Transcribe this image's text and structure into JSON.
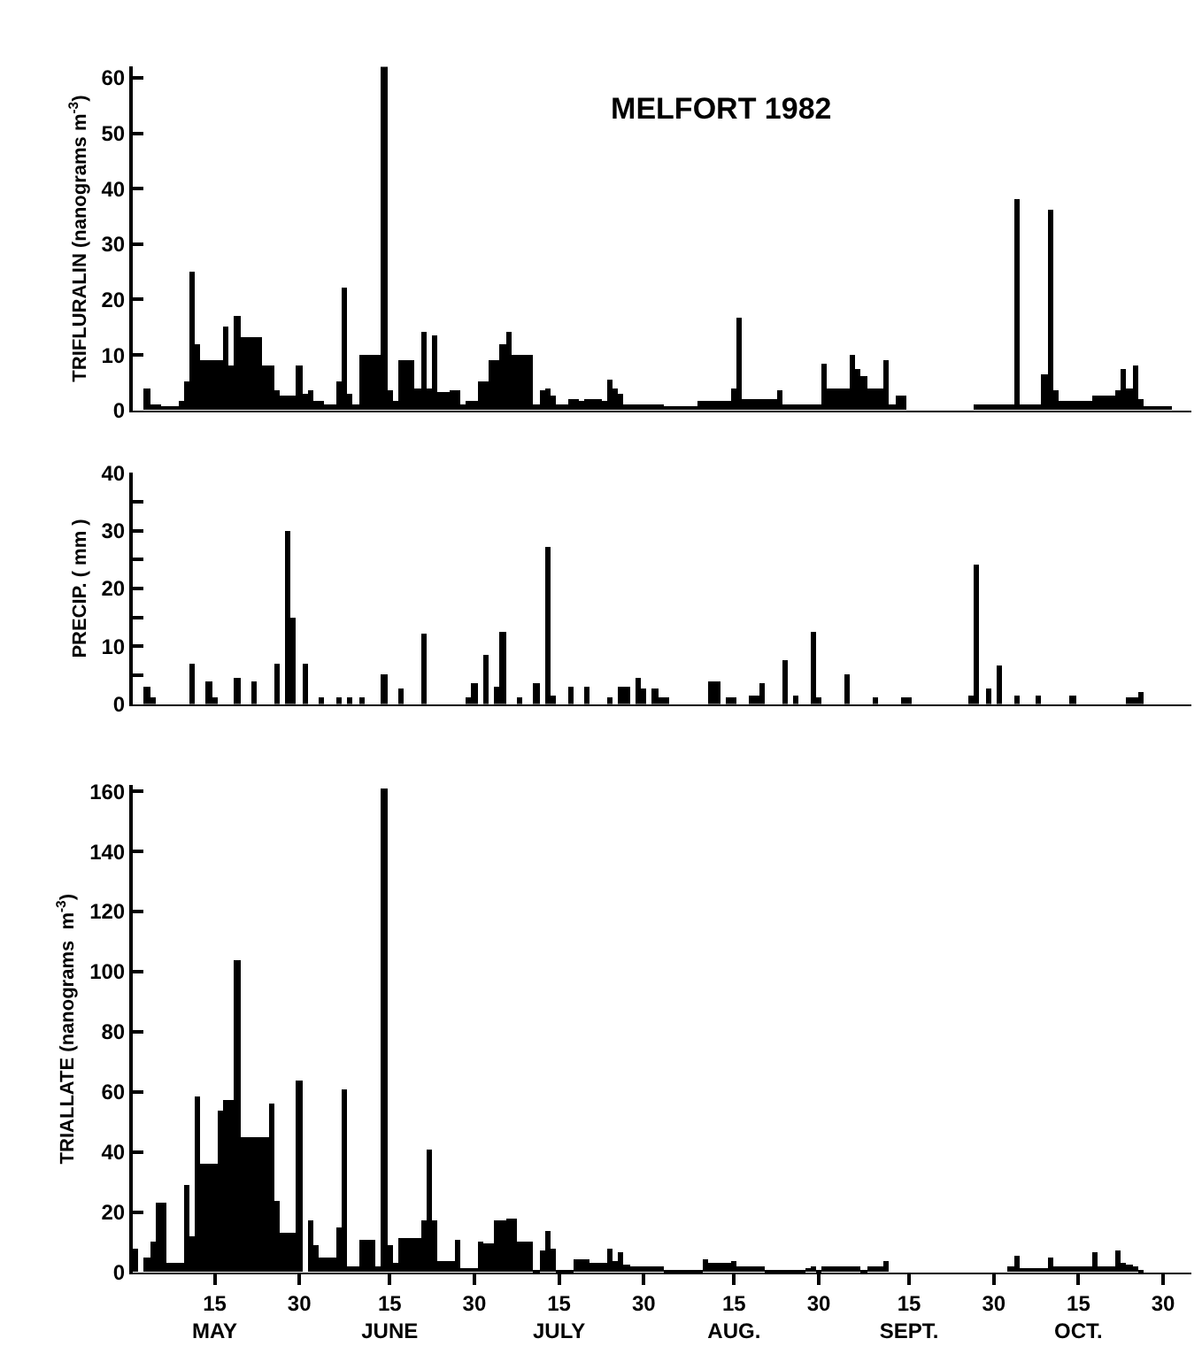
{
  "chart_data": [
    {
      "type": "bar",
      "title": "MELFORT 1982",
      "ylabel": "TRIFLURALIN (nanograms m$^{-3}$)",
      "color": "#000000",
      "tick_labels": "y",
      "xlim": [
        "1982-04-30T12:00",
        "1982-11-04"
      ],
      "ylim": [
        0,
        62
      ],
      "yticks": [
        0,
        10,
        20,
        30,
        40,
        50,
        60
      ],
      "x": [
        "1982-05-01",
        "1982-05-02",
        "1982-05-03",
        "1982-05-04",
        "1982-05-05",
        "1982-05-06",
        "1982-05-07",
        "1982-05-08",
        "1982-05-09",
        "1982-05-10",
        "1982-05-11",
        "1982-05-12",
        "1982-05-13",
        "1982-05-14",
        "1982-05-15",
        "1982-05-16",
        "1982-05-17",
        "1982-05-18",
        "1982-05-19",
        "1982-05-20",
        "1982-05-21",
        "1982-05-22",
        "1982-05-23",
        "1982-05-24",
        "1982-05-25",
        "1982-05-26",
        "1982-05-27",
        "1982-05-28",
        "1982-05-29",
        "1982-05-30",
        "1982-05-31",
        "1982-06-01",
        "1982-06-02",
        "1982-06-03",
        "1982-06-04",
        "1982-06-05",
        "1982-06-06",
        "1982-06-07",
        "1982-06-08",
        "1982-06-09",
        "1982-06-10",
        "1982-06-11",
        "1982-06-12",
        "1982-06-13",
        "1982-06-14",
        "1982-06-15",
        "1982-06-16",
        "1982-06-17",
        "1982-06-18",
        "1982-06-19",
        "1982-06-20",
        "1982-06-21",
        "1982-06-22",
        "1982-06-23",
        "1982-06-24",
        "1982-06-25",
        "1982-06-26",
        "1982-06-27",
        "1982-06-28",
        "1982-06-29",
        "1982-06-30",
        "1982-07-01",
        "1982-07-02",
        "1982-07-03",
        "1982-07-04",
        "1982-07-05",
        "1982-07-06",
        "1982-07-07",
        "1982-07-08",
        "1982-07-09",
        "1982-07-10",
        "1982-07-11",
        "1982-07-12",
        "1982-07-13",
        "1982-07-14",
        "1982-07-15",
        "1982-07-16",
        "1982-07-17",
        "1982-07-18",
        "1982-07-19",
        "1982-07-20",
        "1982-07-21",
        "1982-07-22",
        "1982-07-23",
        "1982-07-24",
        "1982-07-25",
        "1982-07-26",
        "1982-07-27",
        "1982-07-28",
        "1982-07-29",
        "1982-07-30",
        "1982-07-31",
        "1982-08-01",
        "1982-08-02",
        "1982-08-03",
        "1982-08-04",
        "1982-08-05",
        "1982-08-06",
        "1982-08-07",
        "1982-08-08",
        "1982-08-09",
        "1982-08-10",
        "1982-08-11",
        "1982-08-12",
        "1982-08-13",
        "1982-08-14",
        "1982-08-15",
        "1982-08-16",
        "1982-08-17",
        "1982-08-18",
        "1982-08-19",
        "1982-08-20",
        "1982-08-21",
        "1982-08-22",
        "1982-08-23",
        "1982-08-24",
        "1982-08-25",
        "1982-08-26",
        "1982-08-27",
        "1982-08-28",
        "1982-08-29",
        "1982-08-30",
        "1982-08-31",
        "1982-09-01",
        "1982-09-02",
        "1982-09-03",
        "1982-09-04",
        "1982-09-05",
        "1982-09-06",
        "1982-09-07",
        "1982-09-08",
        "1982-09-09",
        "1982-09-10",
        "1982-09-11",
        "1982-09-12",
        "1982-09-13",
        "1982-09-14",
        "1982-09-15",
        "1982-09-16",
        "1982-09-17",
        "1982-09-18",
        "1982-09-19",
        "1982-09-20",
        "1982-09-21",
        "1982-09-22",
        "1982-09-23",
        "1982-09-24",
        "1982-09-25",
        "1982-09-26",
        "1982-09-27",
        "1982-09-28",
        "1982-09-29",
        "1982-09-30",
        "1982-10-01",
        "1982-10-02",
        "1982-10-03",
        "1982-10-04",
        "1982-10-05",
        "1982-10-06",
        "1982-10-07",
        "1982-10-08",
        "1982-10-09",
        "1982-10-10",
        "1982-10-11",
        "1982-10-12",
        "1982-10-13",
        "1982-10-14",
        "1982-10-15",
        "1982-10-16",
        "1982-10-17",
        "1982-10-18",
        "1982-10-19",
        "1982-10-20",
        "1982-10-21",
        "1982-10-22",
        "1982-10-23",
        "1982-10-24",
        "1982-10-25",
        "1982-10-26",
        "1982-10-27",
        "1982-10-28",
        "1982-10-29",
        "1982-10-30",
        "1982-10-31"
      ],
      "values": [
        0,
        0,
        4,
        1,
        1,
        0.8,
        0.8,
        0.8,
        1.5,
        5,
        25,
        12,
        9,
        9,
        9,
        9,
        15,
        8,
        17,
        13,
        13,
        13,
        13,
        8,
        8,
        3.5,
        2.5,
        2.5,
        2.5,
        8,
        3,
        3.5,
        1.5,
        1.5,
        1,
        1,
        5,
        22,
        3,
        1,
        10,
        10,
        10,
        10,
        62,
        3.5,
        1.5,
        9,
        9,
        9,
        4,
        14,
        4,
        13.5,
        3.2,
        3.2,
        3.5,
        3.5,
        1,
        1.5,
        1.5,
        5,
        5,
        9,
        9,
        12,
        14,
        10,
        10,
        10,
        10,
        1,
        3.5,
        4,
        2.5,
        1,
        1,
        2,
        2,
        1.5,
        2,
        2,
        2,
        1.8,
        5.5,
        4,
        3,
        1,
        1,
        1,
        1,
        1,
        1,
        1,
        0.8,
        0.8,
        0.8,
        0.8,
        0.8,
        0.8,
        1.5,
        1.5,
        1.5,
        1.5,
        1.5,
        1.5,
        4,
        16.5,
        2,
        2,
        2,
        2,
        2,
        2,
        3.5,
        1,
        1,
        1,
        1,
        1,
        1,
        1,
        8.5,
        4,
        4,
        4,
        4,
        10,
        7.5,
        6,
        4,
        4,
        4,
        9,
        1,
        2.5,
        2.5,
        0,
        0,
        0,
        0,
        0,
        0,
        0,
        0,
        0,
        0,
        0,
        0,
        1,
        1,
        1,
        1,
        1,
        1,
        1,
        38,
        1,
        1,
        1,
        1,
        6.5,
        36,
        3.5,
        1.5,
        1.5,
        1.5,
        1.5,
        1.5,
        1.5,
        2.5,
        2.5,
        2.5,
        2.5,
        3.5,
        7.5,
        4,
        8,
        2,
        0.8,
        0.8,
        0.8,
        0.8,
        0.8
      ]
    },
    {
      "type": "bar",
      "ylabel": "PRECIP. ( mm )",
      "color": "#000000",
      "tick_labels": "y",
      "xlim": [
        "1982-04-30T12:00",
        "1982-11-04"
      ],
      "ylim": [
        0,
        40
      ],
      "yticks": [
        0,
        {
          "value": 5,
          "label": null
        },
        10,
        {
          "value": 15,
          "label": null
        },
        20,
        {
          "value": 25,
          "label": null
        },
        30,
        {
          "value": 35,
          "label": null
        },
        40
      ],
      "x": [
        "1982-05-01",
        "1982-05-02",
        "1982-05-03",
        "1982-05-04",
        "1982-05-05",
        "1982-05-06",
        "1982-05-07",
        "1982-05-08",
        "1982-05-09",
        "1982-05-10",
        "1982-05-11",
        "1982-05-12",
        "1982-05-13",
        "1982-05-14",
        "1982-05-15",
        "1982-05-16",
        "1982-05-17",
        "1982-05-18",
        "1982-05-19",
        "1982-05-20",
        "1982-05-21",
        "1982-05-22",
        "1982-05-23",
        "1982-05-24",
        "1982-05-25",
        "1982-05-26",
        "1982-05-27",
        "1982-05-28",
        "1982-05-29",
        "1982-05-30",
        "1982-05-31",
        "1982-06-01",
        "1982-06-02",
        "1982-06-03",
        "1982-06-04",
        "1982-06-05",
        "1982-06-06",
        "1982-06-07",
        "1982-06-08",
        "1982-06-09",
        "1982-06-10",
        "1982-06-11",
        "1982-06-12",
        "1982-06-13",
        "1982-06-14",
        "1982-06-15",
        "1982-06-16",
        "1982-06-17",
        "1982-06-18",
        "1982-06-19",
        "1982-06-20",
        "1982-06-21",
        "1982-06-22",
        "1982-06-23",
        "1982-06-24",
        "1982-06-25",
        "1982-06-26",
        "1982-06-27",
        "1982-06-28",
        "1982-06-29",
        "1982-06-30",
        "1982-07-01",
        "1982-07-02",
        "1982-07-03",
        "1982-07-04",
        "1982-07-05",
        "1982-07-06",
        "1982-07-07",
        "1982-07-08",
        "1982-07-09",
        "1982-07-10",
        "1982-07-11",
        "1982-07-12",
        "1982-07-13",
        "1982-07-14",
        "1982-07-15",
        "1982-07-16",
        "1982-07-17",
        "1982-07-18",
        "1982-07-19",
        "1982-07-20",
        "1982-07-21",
        "1982-07-22",
        "1982-07-23",
        "1982-07-24",
        "1982-07-25",
        "1982-07-26",
        "1982-07-27",
        "1982-07-28",
        "1982-07-29",
        "1982-07-30",
        "1982-07-31",
        "1982-08-01",
        "1982-08-02",
        "1982-08-03",
        "1982-08-04",
        "1982-08-05",
        "1982-08-06",
        "1982-08-07",
        "1982-08-08",
        "1982-08-09",
        "1982-08-10",
        "1982-08-11",
        "1982-08-12",
        "1982-08-13",
        "1982-08-14",
        "1982-08-15",
        "1982-08-16",
        "1982-08-17",
        "1982-08-18",
        "1982-08-19",
        "1982-08-20",
        "1982-08-21",
        "1982-08-22",
        "1982-08-23",
        "1982-08-24",
        "1982-08-25",
        "1982-08-26",
        "1982-08-27",
        "1982-08-28",
        "1982-08-29",
        "1982-08-30",
        "1982-08-31",
        "1982-09-01",
        "1982-09-02",
        "1982-09-03",
        "1982-09-04",
        "1982-09-05",
        "1982-09-06",
        "1982-09-07",
        "1982-09-08",
        "1982-09-09",
        "1982-09-10",
        "1982-09-11",
        "1982-09-12",
        "1982-09-13",
        "1982-09-14",
        "1982-09-15",
        "1982-09-16",
        "1982-09-17",
        "1982-09-18",
        "1982-09-19",
        "1982-09-20",
        "1982-09-21",
        "1982-09-22",
        "1982-09-23",
        "1982-09-24",
        "1982-09-25",
        "1982-09-26",
        "1982-09-27",
        "1982-09-28",
        "1982-09-29",
        "1982-09-30",
        "1982-10-01",
        "1982-10-02",
        "1982-10-03",
        "1982-10-04",
        "1982-10-05",
        "1982-10-06",
        "1982-10-07",
        "1982-10-08",
        "1982-10-09",
        "1982-10-10",
        "1982-10-11",
        "1982-10-12",
        "1982-10-13",
        "1982-10-14",
        "1982-10-15",
        "1982-10-16",
        "1982-10-17",
        "1982-10-18",
        "1982-10-19",
        "1982-10-20",
        "1982-10-21",
        "1982-10-22",
        "1982-10-23",
        "1982-10-24",
        "1982-10-25",
        "1982-10-26",
        "1982-10-27",
        "1982-10-28",
        "1982-10-29",
        "1982-10-30",
        "1982-10-31"
      ],
      "values": [
        0,
        0,
        3,
        1,
        0,
        0,
        0,
        0,
        0,
        0,
        7,
        0,
        0,
        4,
        1,
        0,
        0,
        0,
        4.5,
        0,
        0,
        4,
        0,
        0,
        0,
        7,
        0,
        30,
        15,
        0,
        7,
        0,
        0,
        1,
        0,
        0,
        1,
        0,
        1,
        0,
        1,
        0,
        0,
        0,
        5,
        0,
        0,
        2.5,
        0,
        0,
        0,
        12,
        0,
        0,
        0,
        0,
        0,
        0,
        0,
        1.2,
        3.5,
        0,
        8.5,
        0,
        3,
        12.5,
        0,
        0,
        1,
        0,
        0,
        3.5,
        0,
        27,
        1.5,
        0,
        0,
        3,
        0,
        0,
        3,
        0,
        0,
        0,
        1,
        0,
        3,
        3,
        0,
        4.5,
        2.5,
        0,
        2.5,
        1,
        1,
        0,
        0,
        0,
        0,
        0,
        0,
        0,
        4,
        4,
        0,
        1,
        1,
        0,
        0,
        1.5,
        1.5,
        3.5,
        0,
        0,
        0,
        7.5,
        0,
        1.5,
        0,
        0,
        12.5,
        1,
        0,
        0,
        0,
        0,
        5,
        0,
        0,
        0,
        0,
        1,
        0,
        0,
        0,
        0,
        1,
        1,
        0,
        0,
        0,
        0,
        0,
        0,
        0,
        0,
        0,
        0,
        1.5,
        24,
        0,
        2.5,
        0,
        6.5,
        0,
        0,
        1.5,
        0,
        0,
        0,
        1.5,
        0,
        0,
        0,
        0,
        0,
        1.5,
        0,
        0,
        0,
        0,
        0,
        0,
        0,
        0,
        0,
        1,
        1,
        2,
        0,
        0,
        0,
        0,
        0
      ]
    },
    {
      "type": "bar",
      "ylabel": "TRIALLATE (nanograms  m$^{-3}$)",
      "color": "#000000",
      "xlim": [
        "1982-04-30T12:00",
        "1982-11-04"
      ],
      "ylim": [
        0,
        162
      ],
      "yticks": [
        0,
        20,
        40,
        60,
        80,
        100,
        120,
        140,
        160
      ],
      "xticks": [
        {
          "value": "1982-05-15",
          "label": "15\nMAY"
        },
        {
          "value": "1982-05-30",
          "label": "30"
        },
        {
          "value": "1982-06-15",
          "label": "15\nJUNE"
        },
        {
          "value": "1982-06-30",
          "label": "30"
        },
        {
          "value": "1982-07-15",
          "label": "15\nJULY"
        },
        {
          "value": "1982-07-30",
          "label": "30"
        },
        {
          "value": "1982-08-15",
          "label": "15\nAUG."
        },
        {
          "value": "1982-08-30",
          "label": "30"
        },
        {
          "value": "1982-09-15",
          "label": "15\nSEPT."
        },
        {
          "value": "1982-09-30",
          "label": "30"
        },
        {
          "value": "1982-10-15",
          "label": "15\nOCT."
        },
        {
          "value": "1982-10-30",
          "label": "30"
        }
      ],
      "x": [
        "1982-05-01",
        "1982-05-02",
        "1982-05-03",
        "1982-05-04",
        "1982-05-05",
        "1982-05-06",
        "1982-05-07",
        "1982-05-08",
        "1982-05-09",
        "1982-05-10",
        "1982-05-11",
        "1982-05-12",
        "1982-05-13",
        "1982-05-14",
        "1982-05-15",
        "1982-05-16",
        "1982-05-17",
        "1982-05-18",
        "1982-05-19",
        "1982-05-20",
        "1982-05-21",
        "1982-05-22",
        "1982-05-23",
        "1982-05-24",
        "1982-05-25",
        "1982-05-26",
        "1982-05-27",
        "1982-05-28",
        "1982-05-29",
        "1982-05-30",
        "1982-05-31",
        "1982-06-01",
        "1982-06-02",
        "1982-06-03",
        "1982-06-04",
        "1982-06-05",
        "1982-06-06",
        "1982-06-07",
        "1982-06-08",
        "1982-06-09",
        "1982-06-10",
        "1982-06-11",
        "1982-06-12",
        "1982-06-13",
        "1982-06-14",
        "1982-06-15",
        "1982-06-16",
        "1982-06-17",
        "1982-06-18",
        "1982-06-19",
        "1982-06-20",
        "1982-06-21",
        "1982-06-22",
        "1982-06-23",
        "1982-06-24",
        "1982-06-25",
        "1982-06-26",
        "1982-06-27",
        "1982-06-28",
        "1982-06-29",
        "1982-06-30",
        "1982-07-01",
        "1982-07-02",
        "1982-07-03",
        "1982-07-04",
        "1982-07-05",
        "1982-07-06",
        "1982-07-07",
        "1982-07-08",
        "1982-07-09",
        "1982-07-10",
        "1982-07-11",
        "1982-07-12",
        "1982-07-13",
        "1982-07-14",
        "1982-07-15",
        "1982-07-16",
        "1982-07-17",
        "1982-07-18",
        "1982-07-19",
        "1982-07-20",
        "1982-07-21",
        "1982-07-22",
        "1982-07-23",
        "1982-07-24",
        "1982-07-25",
        "1982-07-26",
        "1982-07-27",
        "1982-07-28",
        "1982-07-29",
        "1982-07-30",
        "1982-07-31",
        "1982-08-01",
        "1982-08-02",
        "1982-08-03",
        "1982-08-04",
        "1982-08-05",
        "1982-08-06",
        "1982-08-07",
        "1982-08-08",
        "1982-08-09",
        "1982-08-10",
        "1982-08-11",
        "1982-08-12",
        "1982-08-13",
        "1982-08-14",
        "1982-08-15",
        "1982-08-16",
        "1982-08-17",
        "1982-08-18",
        "1982-08-19",
        "1982-08-20",
        "1982-08-21",
        "1982-08-22",
        "1982-08-23",
        "1982-08-24",
        "1982-08-25",
        "1982-08-26",
        "1982-08-27",
        "1982-08-28",
        "1982-08-29",
        "1982-08-30",
        "1982-08-31",
        "1982-09-01",
        "1982-09-02",
        "1982-09-03",
        "1982-09-04",
        "1982-09-05",
        "1982-09-06",
        "1982-09-07",
        "1982-09-08",
        "1982-09-09",
        "1982-09-10",
        "1982-09-11",
        "1982-09-12",
        "1982-09-13",
        "1982-09-14",
        "1982-09-15",
        "1982-09-16",
        "1982-09-17",
        "1982-09-18",
        "1982-09-19",
        "1982-09-20",
        "1982-09-21",
        "1982-09-22",
        "1982-09-23",
        "1982-09-24",
        "1982-09-25",
        "1982-09-26",
        "1982-09-27",
        "1982-09-28",
        "1982-09-29",
        "1982-09-30",
        "1982-10-01",
        "1982-10-02",
        "1982-10-03",
        "1982-10-04",
        "1982-10-05",
        "1982-10-06",
        "1982-10-07",
        "1982-10-08",
        "1982-10-09",
        "1982-10-10",
        "1982-10-11",
        "1982-10-12",
        "1982-10-13",
        "1982-10-14",
        "1982-10-15",
        "1982-10-16",
        "1982-10-17",
        "1982-10-18",
        "1982-10-19",
        "1982-10-20",
        "1982-10-21",
        "1982-10-22",
        "1982-10-23",
        "1982-10-24",
        "1982-10-25",
        "1982-10-26",
        "1982-10-27",
        "1982-10-28",
        "1982-10-29",
        "1982-10-30",
        "1982-10-31"
      ],
      "values": [
        8,
        0,
        5,
        10,
        23,
        23,
        3,
        3,
        3,
        29,
        12,
        58.5,
        36,
        36,
        36,
        54,
        57,
        57,
        104,
        45,
        45,
        45,
        45,
        45,
        56,
        24,
        13,
        13,
        13,
        64,
        0,
        17,
        9,
        5,
        5,
        5,
        15,
        61,
        2,
        2,
        11,
        11,
        11,
        2,
        161,
        9,
        3,
        11.5,
        11.5,
        11.5,
        11.5,
        17,
        41,
        17,
        3.5,
        3.5,
        3.5,
        10.5,
        1.5,
        1.5,
        1.5,
        10,
        9.5,
        9.5,
        17,
        17,
        18,
        18,
        10,
        10,
        10,
        1,
        7.5,
        14,
        8,
        1,
        1,
        1,
        4.5,
        4.5,
        4.5,
        3,
        3,
        3,
        8,
        3.5,
        6.5,
        2.5,
        2,
        2,
        2,
        2,
        2,
        2,
        1,
        1,
        1,
        1,
        1,
        1,
        1,
        4.5,
        3,
        3,
        3,
        3,
        4,
        2,
        2,
        2,
        2,
        2,
        0.8,
        0.8,
        0.8,
        0.8,
        0.8,
        0.8,
        0.8,
        1.5,
        2,
        0.8,
        2,
        2,
        2,
        2,
        2,
        2,
        2,
        0.5,
        2,
        2,
        2,
        3.5,
        0,
        0,
        0,
        0,
        0,
        0,
        0,
        0,
        0,
        0,
        0,
        0,
        0,
        0,
        0,
        0,
        0,
        0,
        0,
        0,
        0,
        2,
        5.5,
        1.5,
        1.5,
        1.5,
        1.5,
        1.5,
        5,
        1.8,
        1.8,
        1.8,
        1.8,
        1.8,
        1.8,
        2,
        6.5,
        2,
        2,
        2,
        7,
        3,
        2.5,
        2,
        1,
        0,
        0,
        0,
        0,
        0
      ]
    }
  ]
}
